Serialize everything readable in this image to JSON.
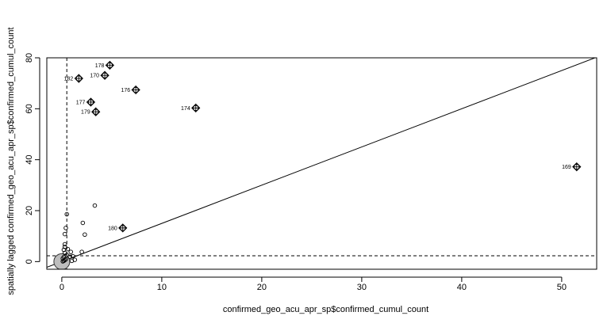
{
  "chart_data": {
    "type": "scatter",
    "xlabel": "confirmed_geo_acu_apr_sp$confirmed_cumul_count",
    "ylabel": "spatially lagged confirmed_geo_acu_apr_sp$confirmed_cumul_count",
    "xlim": [
      -1.5,
      53.5
    ],
    "ylim": [
      -3,
      80
    ],
    "xticks": [
      0,
      10,
      20,
      30,
      40,
      50
    ],
    "yticks": [
      0,
      20,
      40,
      60,
      80
    ],
    "mean_x": 0.5,
    "mean_y": 2.3,
    "regression": {
      "intercept": 0,
      "slope": 1.5
    },
    "points": [
      [
        0.1,
        0.1
      ],
      [
        0.2,
        0.3
      ],
      [
        0.3,
        0.6
      ],
      [
        0.1,
        1.2
      ],
      [
        0.4,
        0.9
      ],
      [
        0.2,
        1.8
      ],
      [
        0.5,
        2.6
      ],
      [
        0.3,
        3.4
      ],
      [
        0.2,
        4.6
      ],
      [
        0.3,
        5.8
      ],
      [
        0.3,
        6.8
      ],
      [
        0.3,
        10.8
      ],
      [
        0.4,
        13.2
      ],
      [
        0.5,
        18.6
      ],
      [
        0.9,
        3.8
      ],
      [
        0.8,
        1.9
      ],
      [
        1.0,
        0.3
      ],
      [
        1.3,
        0.7
      ],
      [
        2.0,
        3.8
      ],
      [
        2.3,
        10.6
      ],
      [
        2.1,
        15.2
      ],
      [
        3.3,
        22.0
      ],
      [
        0.6,
        4.9
      ],
      [
        1.1,
        2.1
      ]
    ],
    "influential": [
      {
        "id": "169",
        "x": 51.5,
        "y": 37.2
      },
      {
        "id": "170",
        "x": 4.3,
        "y": 73.1
      },
      {
        "id": "174",
        "x": 13.4,
        "y": 60.3
      },
      {
        "id": "176",
        "x": 7.4,
        "y": 67.4
      },
      {
        "id": "177",
        "x": 2.9,
        "y": 62.6
      },
      {
        "id": "178",
        "x": 4.8,
        "y": 77.1
      },
      {
        "id": "179",
        "x": 3.4,
        "y": 58.8
      },
      {
        "id": "180",
        "x": 6.1,
        "y": 13.2
      },
      {
        "id": "182",
        "x": 1.7,
        "y": 71.9
      }
    ],
    "large_circle": {
      "x": 0,
      "y": 0
    }
  }
}
